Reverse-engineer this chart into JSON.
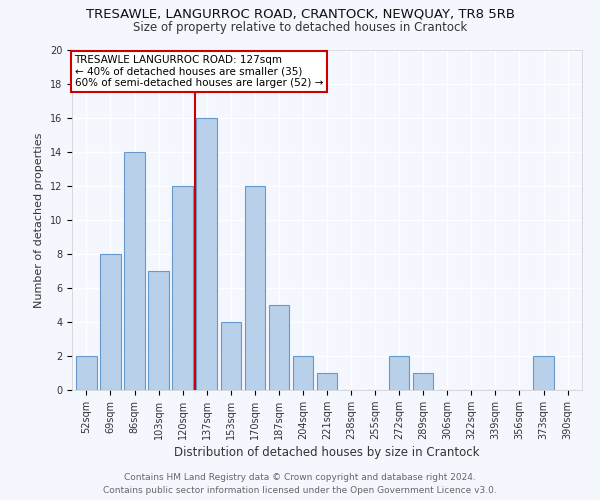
{
  "title": "TRESAWLE, LANGURROC ROAD, CRANTOCK, NEWQUAY, TR8 5RB",
  "subtitle": "Size of property relative to detached houses in Crantock",
  "xlabel": "Distribution of detached houses by size in Crantock",
  "ylabel": "Number of detached properties",
  "categories": [
    "52sqm",
    "69sqm",
    "86sqm",
    "103sqm",
    "120sqm",
    "137sqm",
    "153sqm",
    "170sqm",
    "187sqm",
    "204sqm",
    "221sqm",
    "238sqm",
    "255sqm",
    "272sqm",
    "289sqm",
    "306sqm",
    "322sqm",
    "339sqm",
    "356sqm",
    "373sqm",
    "390sqm"
  ],
  "values": [
    2,
    8,
    14,
    7,
    12,
    16,
    4,
    12,
    5,
    2,
    1,
    0,
    0,
    2,
    1,
    0,
    0,
    0,
    0,
    2,
    0
  ],
  "bar_color": "#b8d0ea",
  "bar_edge_color": "#6699cc",
  "vline_x_index": 4.5,
  "vline_color": "#cc0000",
  "annotation_lines": [
    "TRESAWLE LANGURROC ROAD: 127sqm",
    "← 40% of detached houses are smaller (35)",
    "60% of semi-detached houses are larger (52) →"
  ],
  "annotation_box_color": "#ffffff",
  "annotation_box_edge": "#cc0000",
  "ylim": [
    0,
    20
  ],
  "yticks": [
    0,
    2,
    4,
    6,
    8,
    10,
    12,
    14,
    16,
    18,
    20
  ],
  "footer_line1": "Contains HM Land Registry data © Crown copyright and database right 2024.",
  "footer_line2": "Contains public sector information licensed under the Open Government Licence v3.0.",
  "bg_color": "#f5f7ff",
  "plot_bg_color": "#f5f7ff",
  "title_fontsize": 9.5,
  "subtitle_fontsize": 8.5,
  "xlabel_fontsize": 8.5,
  "ylabel_fontsize": 8,
  "tick_fontsize": 7,
  "annotation_fontsize": 7.5,
  "footer_fontsize": 6.5
}
